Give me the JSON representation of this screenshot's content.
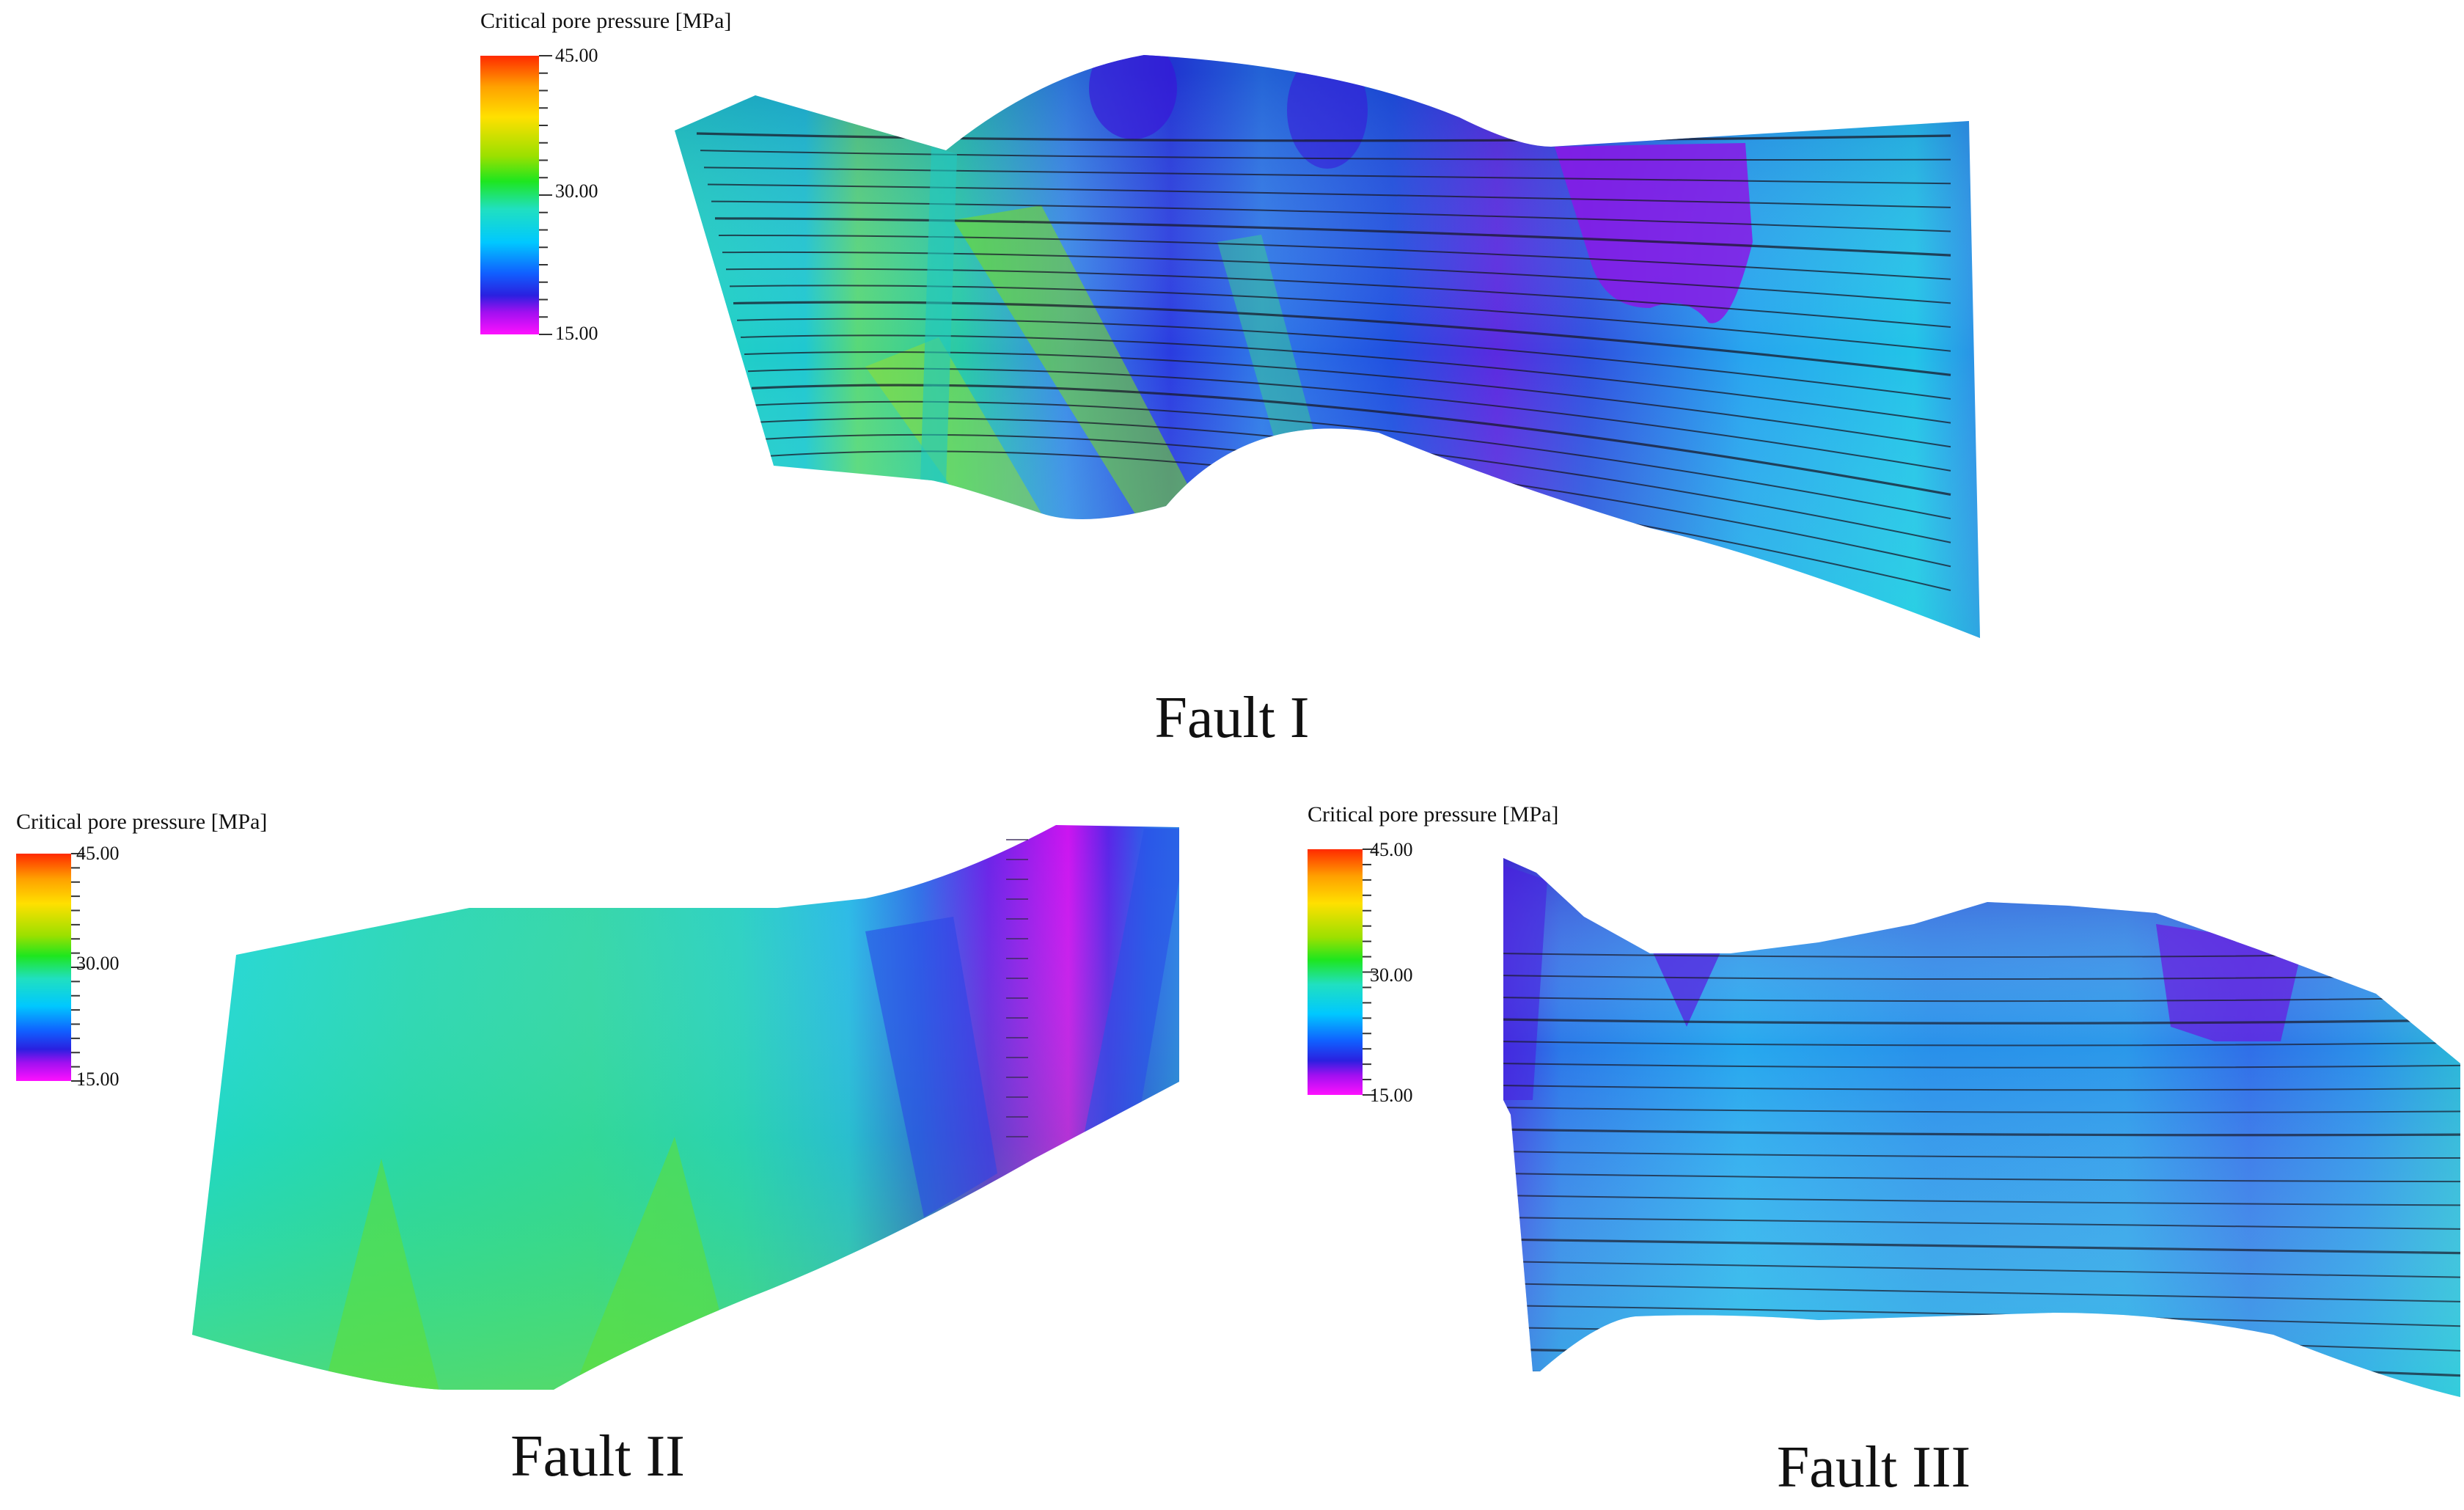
{
  "legend": {
    "title": "Critical pore pressure [MPa]",
    "max_label": "45.00",
    "mid_label": "30.00",
    "min_label": "15.00",
    "colors": [
      "#ff2a00",
      "#ffd400",
      "#9be000",
      "#1ee61e",
      "#20e0c0",
      "#00c8ff",
      "#1060ff",
      "#2a20e0",
      "#a010f0",
      "#ff10ff"
    ]
  },
  "faults": [
    {
      "title": "Fault I"
    },
    {
      "title": "Fault II"
    },
    {
      "title": "Fault III"
    }
  ]
}
